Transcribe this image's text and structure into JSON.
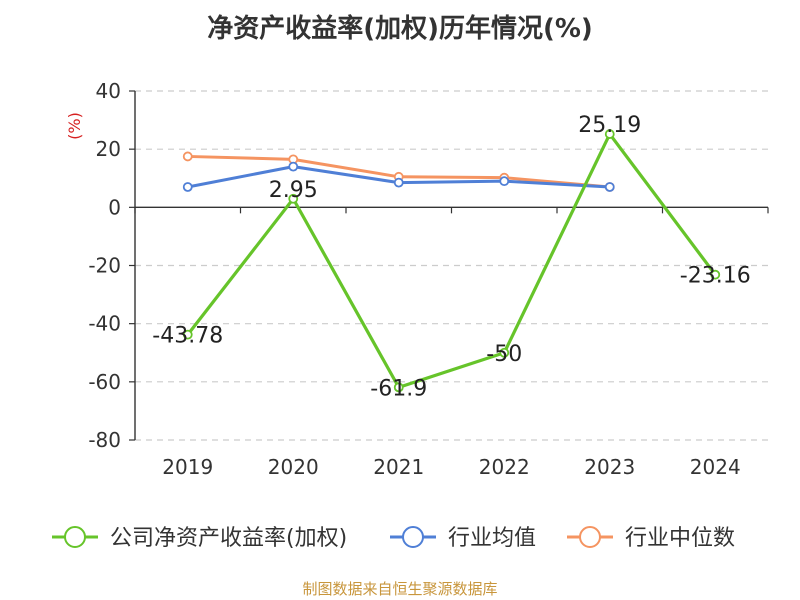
{
  "page_title": "净资产收益率(加权)历年情况(%)",
  "source": "制图数据来自恒生聚源数据库",
  "colors": {
    "company": "#66c42a",
    "industry_avg": "#4f7fd6",
    "industry_median": "#f59461",
    "axis": "#333333",
    "grid": "#cccccc",
    "unit": "#d62020"
  },
  "chart_data": {
    "type": "line",
    "title": "净资产收益率(加权)历年情况(%)",
    "ylabel": "(%)",
    "xlabel": "",
    "ylim": [
      -80,
      40
    ],
    "yticks": [
      40,
      20,
      0,
      -20,
      -40,
      -60,
      -80
    ],
    "grid": "horizontal-dashed",
    "legend_position": "bottom",
    "categories": [
      "2019",
      "2020",
      "2021",
      "2022",
      "2023",
      "2024"
    ],
    "series": [
      {
        "name": "公司净资产收益率(加权)",
        "color": "#66c42a",
        "values": [
          -43.78,
          2.95,
          -61.9,
          -50,
          25.19,
          -23.16
        ],
        "labels": [
          "-43.78",
          "2.95",
          "-61.9",
          "-50",
          "25.19",
          "-23.16"
        ]
      },
      {
        "name": "行业均值",
        "color": "#4f7fd6",
        "values": [
          7,
          14,
          8.5,
          9,
          7,
          null
        ]
      },
      {
        "name": "行业中位数",
        "color": "#f59461",
        "values": [
          17.5,
          16.5,
          10.5,
          10.2,
          7,
          null
        ]
      }
    ]
  }
}
